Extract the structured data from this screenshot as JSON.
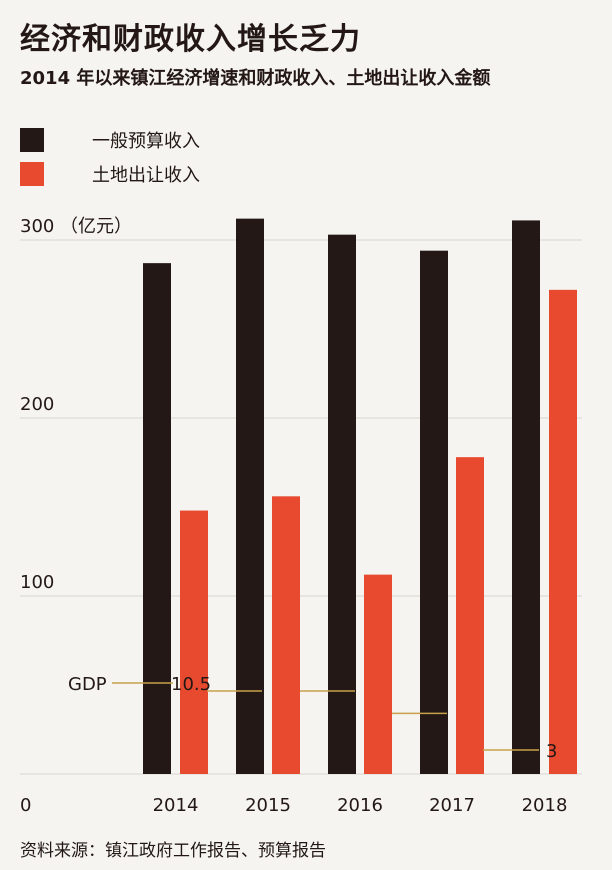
{
  "header": {
    "title": "经济和财政收入增长乏力",
    "subtitle": "2014 年以来镇江经济增速和财政收入、土地出让收入金额"
  },
  "footer": {
    "source": "资料来源：镇江政府工作报告、预算报告"
  },
  "colors": {
    "background": "#f5f4f0",
    "general_budget": "#231815",
    "land_sale": "#e84a2f",
    "gdp_line": "#c9a14a",
    "grid": "#d9d6cf",
    "text": "#231815"
  },
  "chart_data": {
    "type": "bar",
    "categories": [
      "2014",
      "2015",
      "2016",
      "2017",
      "2018"
    ],
    "series": [
      {
        "name": "一般预算收入",
        "values": [
          287,
          312,
          303,
          294,
          311
        ],
        "color": "#231815"
      },
      {
        "name": "土地出让收入",
        "values": [
          148,
          156,
          112,
          178,
          272
        ],
        "color": "#e84a2f"
      }
    ],
    "overlay_series": {
      "name": "GDP",
      "label": "GDP",
      "values": [
        10.5,
        9.6,
        9.6,
        7.1,
        3
      ],
      "labels": [
        "10.5",
        "",
        "",
        "",
        "3"
      ],
      "unit": "%",
      "axis": "hidden"
    },
    "y_ticks": [
      0,
      100,
      200,
      300
    ],
    "y_tick_labels": [
      "0",
      "100",
      "200",
      "300"
    ],
    "y_unit_label": "（亿元）",
    "ylim": [
      0,
      300
    ],
    "grid": true,
    "legend_position": "top-left",
    "xlabel": "",
    "ylabel": ""
  }
}
